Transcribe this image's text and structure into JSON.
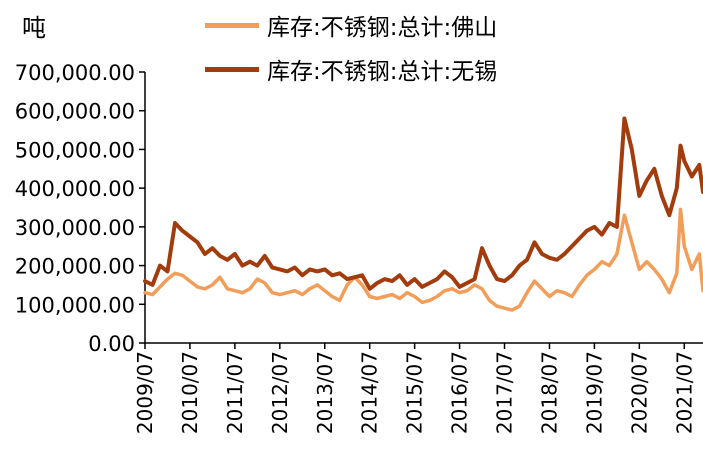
{
  "chart_data": {
    "type": "line",
    "unit_label": "吨",
    "ylim": [
      0,
      700000
    ],
    "y_ticks": [
      "0.00",
      "100,000.00",
      "200,000.00",
      "300,000.00",
      "400,000.00",
      "500,000.00",
      "600,000.00",
      "700,000.00"
    ],
    "x_start": "2009-07",
    "x_end": "2021-12",
    "x_ticks": [
      "2009/07",
      "2010/07",
      "2011/07",
      "2012/07",
      "2013/07",
      "2014/07",
      "2015/07",
      "2016/07",
      "2017/07",
      "2018/07",
      "2019/07",
      "2020/07",
      "2021/07"
    ],
    "legend_position": "top",
    "series": [
      {
        "name": "库存:不锈钢:总计:佛山",
        "color": "#f29d58",
        "points": [
          [
            "2009-07",
            130000
          ],
          [
            "2009-09",
            125000
          ],
          [
            "2009-11",
            145000
          ],
          [
            "2010-01",
            165000
          ],
          [
            "2010-03",
            180000
          ],
          [
            "2010-05",
            175000
          ],
          [
            "2010-07",
            160000
          ],
          [
            "2010-09",
            145000
          ],
          [
            "2010-11",
            140000
          ],
          [
            "2011-01",
            150000
          ],
          [
            "2011-03",
            170000
          ],
          [
            "2011-05",
            140000
          ],
          [
            "2011-07",
            135000
          ],
          [
            "2011-09",
            130000
          ],
          [
            "2011-11",
            140000
          ],
          [
            "2012-01",
            165000
          ],
          [
            "2012-03",
            155000
          ],
          [
            "2012-05",
            130000
          ],
          [
            "2012-07",
            125000
          ],
          [
            "2012-09",
            130000
          ],
          [
            "2012-11",
            135000
          ],
          [
            "2013-01",
            125000
          ],
          [
            "2013-03",
            140000
          ],
          [
            "2013-05",
            150000
          ],
          [
            "2013-07",
            135000
          ],
          [
            "2013-09",
            120000
          ],
          [
            "2013-11",
            110000
          ],
          [
            "2014-01",
            150000
          ],
          [
            "2014-03",
            170000
          ],
          [
            "2014-05",
            150000
          ],
          [
            "2014-07",
            120000
          ],
          [
            "2014-09",
            115000
          ],
          [
            "2014-11",
            120000
          ],
          [
            "2015-01",
            125000
          ],
          [
            "2015-03",
            115000
          ],
          [
            "2015-05",
            130000
          ],
          [
            "2015-07",
            120000
          ],
          [
            "2015-09",
            105000
          ],
          [
            "2015-11",
            110000
          ],
          [
            "2016-01",
            120000
          ],
          [
            "2016-03",
            135000
          ],
          [
            "2016-05",
            140000
          ],
          [
            "2016-07",
            130000
          ],
          [
            "2016-09",
            135000
          ],
          [
            "2016-11",
            150000
          ],
          [
            "2017-01",
            140000
          ],
          [
            "2017-03",
            110000
          ],
          [
            "2017-05",
            95000
          ],
          [
            "2017-07",
            90000
          ],
          [
            "2017-09",
            85000
          ],
          [
            "2017-11",
            95000
          ],
          [
            "2018-01",
            130000
          ],
          [
            "2018-03",
            160000
          ],
          [
            "2018-05",
            140000
          ],
          [
            "2018-07",
            120000
          ],
          [
            "2018-09",
            135000
          ],
          [
            "2018-11",
            130000
          ],
          [
            "2019-01",
            120000
          ],
          [
            "2019-03",
            150000
          ],
          [
            "2019-05",
            175000
          ],
          [
            "2019-07",
            190000
          ],
          [
            "2019-09",
            210000
          ],
          [
            "2019-11",
            200000
          ],
          [
            "2020-01",
            230000
          ],
          [
            "2020-03",
            330000
          ],
          [
            "2020-05",
            260000
          ],
          [
            "2020-07",
            190000
          ],
          [
            "2020-09",
            210000
          ],
          [
            "2020-11",
            190000
          ],
          [
            "2021-01",
            165000
          ],
          [
            "2021-03",
            130000
          ],
          [
            "2021-05",
            180000
          ],
          [
            "2021-06",
            345000
          ],
          [
            "2021-07",
            250000
          ],
          [
            "2021-09",
            190000
          ],
          [
            "2021-11",
            230000
          ],
          [
            "2021-12",
            135000
          ]
        ]
      },
      {
        "name": "库存:不锈钢:总计:无锡",
        "color": "#a33c0c",
        "points": [
          [
            "2009-07",
            160000
          ],
          [
            "2009-09",
            150000
          ],
          [
            "2009-11",
            200000
          ],
          [
            "2010-01",
            185000
          ],
          [
            "2010-03",
            310000
          ],
          [
            "2010-05",
            290000
          ],
          [
            "2010-07",
            275000
          ],
          [
            "2010-09",
            260000
          ],
          [
            "2010-11",
            230000
          ],
          [
            "2011-01",
            245000
          ],
          [
            "2011-03",
            225000
          ],
          [
            "2011-05",
            215000
          ],
          [
            "2011-07",
            230000
          ],
          [
            "2011-09",
            200000
          ],
          [
            "2011-11",
            210000
          ],
          [
            "2012-01",
            200000
          ],
          [
            "2012-03",
            225000
          ],
          [
            "2012-05",
            195000
          ],
          [
            "2012-07",
            190000
          ],
          [
            "2012-09",
            185000
          ],
          [
            "2012-11",
            195000
          ],
          [
            "2013-01",
            175000
          ],
          [
            "2013-03",
            190000
          ],
          [
            "2013-05",
            185000
          ],
          [
            "2013-07",
            190000
          ],
          [
            "2013-09",
            175000
          ],
          [
            "2013-11",
            180000
          ],
          [
            "2014-01",
            165000
          ],
          [
            "2014-03",
            170000
          ],
          [
            "2014-05",
            175000
          ],
          [
            "2014-07",
            140000
          ],
          [
            "2014-09",
            155000
          ],
          [
            "2014-11",
            165000
          ],
          [
            "2015-01",
            160000
          ],
          [
            "2015-03",
            175000
          ],
          [
            "2015-05",
            150000
          ],
          [
            "2015-07",
            165000
          ],
          [
            "2015-09",
            145000
          ],
          [
            "2015-11",
            155000
          ],
          [
            "2016-01",
            165000
          ],
          [
            "2016-03",
            185000
          ],
          [
            "2016-05",
            170000
          ],
          [
            "2016-07",
            145000
          ],
          [
            "2016-09",
            155000
          ],
          [
            "2016-11",
            165000
          ],
          [
            "2017-01",
            245000
          ],
          [
            "2017-03",
            200000
          ],
          [
            "2017-05",
            165000
          ],
          [
            "2017-07",
            160000
          ],
          [
            "2017-09",
            175000
          ],
          [
            "2017-11",
            200000
          ],
          [
            "2018-01",
            215000
          ],
          [
            "2018-03",
            260000
          ],
          [
            "2018-05",
            230000
          ],
          [
            "2018-07",
            220000
          ],
          [
            "2018-09",
            215000
          ],
          [
            "2018-11",
            230000
          ],
          [
            "2019-01",
            250000
          ],
          [
            "2019-03",
            270000
          ],
          [
            "2019-05",
            290000
          ],
          [
            "2019-07",
            300000
          ],
          [
            "2019-09",
            280000
          ],
          [
            "2019-11",
            310000
          ],
          [
            "2020-01",
            300000
          ],
          [
            "2020-03",
            580000
          ],
          [
            "2020-05",
            500000
          ],
          [
            "2020-07",
            380000
          ],
          [
            "2020-09",
            420000
          ],
          [
            "2020-11",
            450000
          ],
          [
            "2021-01",
            380000
          ],
          [
            "2021-03",
            330000
          ],
          [
            "2021-05",
            400000
          ],
          [
            "2021-06",
            510000
          ],
          [
            "2021-07",
            470000
          ],
          [
            "2021-09",
            430000
          ],
          [
            "2021-11",
            460000
          ],
          [
            "2021-12",
            390000
          ]
        ]
      }
    ]
  }
}
